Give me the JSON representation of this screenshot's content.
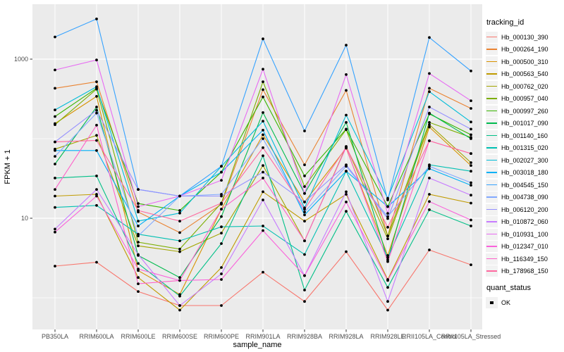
{
  "figure": {
    "panel_bg": "#EBEBEB",
    "grid_color": "#FFFFFF",
    "tick_color": "#333333",
    "tick_label_color": "#4D4D4D",
    "point_color": "#000000"
  },
  "chart_data": {
    "type": "line",
    "title": "",
    "xlabel": "sample_name",
    "ylabel": "FPKM + 1",
    "y_scale": "log10",
    "grid": true,
    "legend_position": "right",
    "y_ticks": [
      {
        "label": "1000",
        "value": 1000
      },
      {
        "label": "10",
        "value": 10
      }
    ],
    "y_minor_values": [
      100,
      1
    ],
    "x_categories": [
      "PB350LA",
      "RRIM600LA",
      "RRIM600LE",
      "RRIM600SE",
      "RRIM600PE",
      "RRIM901LA",
      "RRIM928BA",
      "RRIM928LA",
      "RRIM928LE",
      "RRII105LA_Control",
      "RRII105LA_Stressed"
    ],
    "series_legend_title": "tracking_id",
    "quant_legend_title": "quant_status",
    "quant_items": [
      "OK"
    ],
    "series": [
      {
        "name": "Hb_000130_390",
        "color": "#F8766D",
        "values": [
          2.5,
          2.8,
          1.2,
          0.8,
          0.8,
          2.1,
          0.9,
          3.8,
          0.7,
          4.0,
          2.6
        ]
      },
      {
        "name": "Hb_000264_190",
        "color": "#EA8331",
        "values": [
          430,
          520,
          12,
          6.6,
          15,
          413,
          47,
          405,
          6.0,
          430,
          240
        ]
      },
      {
        "name": "Hb_000500_310",
        "color": "#D89200",
        "values": [
          155,
          340,
          2.2,
          1.1,
          13,
          112,
          16,
          76,
          3.4,
          140,
          46
        ]
      },
      {
        "name": "Hb_000563_540",
        "color": "#C09B00",
        "values": [
          19,
          20,
          1.8,
          0.7,
          2.4,
          21.5,
          9.2,
          20,
          1.7,
          20,
          15.5
        ]
      },
      {
        "name": "Hb_000762_020",
        "color": "#A3A500",
        "values": [
          74,
          110,
          4.5,
          3.8,
          6.5,
          46,
          5.2,
          80,
          5.5,
          150,
          50
        ]
      },
      {
        "name": "Hb_000957_040",
        "color": "#7CAE00",
        "values": [
          150,
          420,
          5.0,
          4.1,
          15.5,
          520,
          25,
          130,
          6.0,
          160,
          104
        ]
      },
      {
        "name": "Hb_000997_260",
        "color": "#39B600",
        "values": [
          190,
          430,
          15.3,
          12.5,
          38,
          335,
          34,
          132,
          14,
          205,
          112
        ]
      },
      {
        "name": "Hb_001017_090",
        "color": "#00BB4E",
        "values": [
          48,
          250,
          3.4,
          1.8,
          10.5,
          213,
          20.5,
          160,
          3.0,
          210,
          100
        ]
      },
      {
        "name": "Hb_001140_160",
        "color": "#00C087",
        "values": [
          32,
          34,
          2.7,
          1.05,
          4.8,
          61,
          1.25,
          12.2,
          1.35,
          12.8,
          8.0
        ]
      },
      {
        "name": "Hb_001315_020",
        "color": "#00C0B2",
        "values": [
          13.7,
          14.5,
          6.3,
          5.2,
          7.8,
          8.0,
          3.5,
          39,
          3.2,
          47,
          39
        ]
      },
      {
        "name": "Hb_002027_300",
        "color": "#00BCD8",
        "values": [
          230,
          450,
          9.2,
          11.6,
          45,
          166,
          13.5,
          198,
          17.8,
          390,
          162
        ]
      },
      {
        "name": "Hb_003018_180",
        "color": "#00B0F6",
        "values": [
          71,
          71,
          8.0,
          19,
          38,
          128,
          11,
          39,
          14,
          42,
          26
        ]
      },
      {
        "name": "Hb_004545_150",
        "color": "#35A2FF",
        "values": [
          1900,
          3200,
          23,
          19,
          45,
          1800,
          125,
          1500,
          17,
          1870,
          710
        ]
      },
      {
        "name": "Hb_004738_090",
        "color": "#82A9FF",
        "values": [
          60,
          210,
          6.0,
          19,
          20,
          100,
          12,
          45,
          10.5,
          45,
          28
        ]
      },
      {
        "name": "Hb_006120_200",
        "color": "#9590FF",
        "values": [
          91,
          228,
          23,
          19,
          19,
          38,
          16,
          47,
          9.9,
          250,
          132
        ]
      },
      {
        "name": "Hb_010872_060",
        "color": "#C77CFF",
        "values": [
          7.3,
          23,
          3.5,
          0.8,
          2.0,
          17,
          1.9,
          21.5,
          0.9,
          32,
          19.5
        ]
      },
      {
        "name": "Hb_010931_100",
        "color": "#E76BF3",
        "values": [
          730,
          975,
          14,
          19,
          30,
          747,
          20.5,
          640,
          11.5,
          660,
          300
        ]
      },
      {
        "name": "Hb_012347_010",
        "color": "#FA62DB",
        "values": [
          6.7,
          19,
          2.3,
          1.65,
          1.7,
          7.0,
          1.9,
          16,
          1.65,
          16.2,
          9.5
        ]
      },
      {
        "name": "Hb_116349_150",
        "color": "#FF61C9",
        "values": [
          23,
          148,
          1.5,
          1.65,
          13,
          32,
          5.2,
          78,
          2.85,
          94,
          65
        ]
      },
      {
        "name": "Hb_178968_150",
        "color": "#FF689F",
        "values": [
          91,
          95,
          12.5,
          9.2,
          15.5,
          77,
          13,
          78,
          7.7,
          94,
          65
        ]
      }
    ]
  }
}
